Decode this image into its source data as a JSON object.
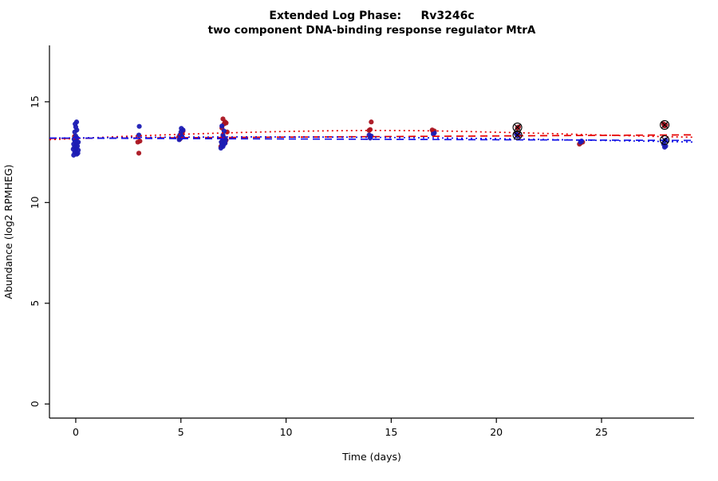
{
  "chart_data": {
    "type": "scatter",
    "title": "Extended Log Phase:     Rv3246c",
    "subtitle": "two component DNA-binding response regulator MtrA",
    "xlabel": "Time  (days)",
    "ylabel": "Abundance  (log2 RPMHEG)",
    "xlim": [
      -1.25,
      29.4
    ],
    "ylim": [
      -0.7,
      17.8
    ],
    "xticks": [
      0,
      5,
      10,
      15,
      20,
      25
    ],
    "yticks": [
      0,
      5,
      10,
      15
    ],
    "grid": false,
    "legend": "none",
    "colors": {
      "red_points": "#aa1420",
      "blue_points": "#1c1cb4",
      "red_line": "#e60000",
      "blue_line": "#1414e6",
      "axis": "#000000",
      "marker_outline": "#000000"
    },
    "series": [
      {
        "name": "red-condition",
        "color": "#aa1420",
        "points": [
          [
            0.02,
            12.48
          ],
          [
            -0.06,
            13.28
          ],
          [
            3.0,
            12.45
          ],
          [
            2.95,
            13.0
          ],
          [
            3.05,
            13.05
          ],
          [
            4.95,
            13.15
          ],
          [
            4.9,
            13.25
          ],
          [
            5.0,
            13.3
          ],
          [
            5.05,
            13.45
          ],
          [
            5.1,
            13.55
          ],
          [
            6.9,
            12.78
          ],
          [
            7.0,
            12.85
          ],
          [
            7.1,
            12.95
          ],
          [
            6.95,
            13.0
          ],
          [
            7.05,
            13.05
          ],
          [
            7.15,
            13.1
          ],
          [
            7.0,
            13.3
          ],
          [
            7.2,
            13.5
          ],
          [
            6.95,
            13.7
          ],
          [
            7.05,
            13.9
          ],
          [
            7.15,
            13.95
          ],
          [
            7.1,
            14.0
          ],
          [
            7.0,
            14.15
          ],
          [
            13.95,
            13.58
          ],
          [
            14.0,
            13.62
          ],
          [
            14.05,
            14.0
          ],
          [
            17.0,
            13.5
          ],
          [
            17.05,
            13.55
          ],
          [
            16.95,
            13.6
          ],
          [
            21.0,
            13.7
          ],
          [
            21.05,
            13.75
          ],
          [
            23.95,
            12.9
          ],
          [
            24.0,
            12.95
          ],
          [
            24.1,
            13.0
          ],
          [
            28.0,
            13.8
          ],
          [
            28.05,
            13.85
          ],
          [
            27.95,
            13.9
          ]
        ]
      },
      {
        "name": "blue-condition",
        "color": "#1c1cb4",
        "points": [
          [
            -0.1,
            12.35
          ],
          [
            0.05,
            12.4
          ],
          [
            0.1,
            12.45
          ],
          [
            -0.05,
            12.5
          ],
          [
            0.0,
            12.55
          ],
          [
            0.12,
            12.6
          ],
          [
            -0.12,
            12.65
          ],
          [
            0.03,
            12.7
          ],
          [
            -0.06,
            12.75
          ],
          [
            0.08,
            12.8
          ],
          [
            0.0,
            12.85
          ],
          [
            -0.1,
            12.9
          ],
          [
            0.05,
            12.95
          ],
          [
            0.12,
            13.0
          ],
          [
            -0.04,
            13.05
          ],
          [
            0.02,
            13.1
          ],
          [
            -0.08,
            13.15
          ],
          [
            0.06,
            13.2
          ],
          [
            0.0,
            13.3
          ],
          [
            -0.05,
            13.5
          ],
          [
            0.05,
            13.6
          ],
          [
            0.0,
            13.75
          ],
          [
            -0.03,
            13.9
          ],
          [
            0.04,
            14.0
          ],
          [
            3.0,
            13.35
          ],
          [
            3.02,
            13.78
          ],
          [
            4.92,
            13.12
          ],
          [
            5.0,
            13.2
          ],
          [
            5.05,
            13.3
          ],
          [
            4.95,
            13.35
          ],
          [
            5.0,
            13.5
          ],
          [
            5.1,
            13.6
          ],
          [
            5.02,
            13.68
          ],
          [
            6.9,
            12.7
          ],
          [
            7.0,
            12.78
          ],
          [
            6.95,
            12.85
          ],
          [
            7.05,
            12.9
          ],
          [
            7.1,
            12.95
          ],
          [
            6.92,
            13.0
          ],
          [
            7.02,
            13.05
          ],
          [
            7.12,
            13.1
          ],
          [
            6.98,
            13.15
          ],
          [
            7.08,
            13.2
          ],
          [
            7.0,
            13.35
          ],
          [
            7.05,
            13.55
          ],
          [
            6.95,
            13.8
          ],
          [
            14.0,
            13.2
          ],
          [
            14.05,
            13.3
          ],
          [
            13.95,
            13.35
          ],
          [
            17.0,
            13.4
          ],
          [
            17.05,
            13.45
          ],
          [
            21.0,
            13.3
          ],
          [
            21.05,
            13.35
          ],
          [
            20.95,
            13.4
          ],
          [
            24.0,
            13.0
          ],
          [
            24.05,
            13.05
          ],
          [
            28.0,
            12.75
          ],
          [
            28.05,
            12.8
          ],
          [
            27.95,
            12.9
          ],
          [
            28.0,
            13.05
          ],
          [
            28.05,
            13.1
          ]
        ]
      }
    ],
    "circled_points": [
      [
        21,
        13.73
      ],
      [
        21,
        13.35
      ],
      [
        28,
        13.85
      ],
      [
        28,
        13.1
      ]
    ],
    "trend_lines": [
      {
        "name": "red-dashed-fit",
        "color": "#e60000",
        "style": "dashed",
        "points": [
          [
            -1.25,
            13.18
          ],
          [
            29.4,
            13.36
          ]
        ]
      },
      {
        "name": "blue-dashed-fit",
        "color": "#1414e6",
        "style": "dashed",
        "points": [
          [
            -1.25,
            13.2
          ],
          [
            29.4,
            13.08
          ]
        ]
      },
      {
        "name": "red-dotted-fit",
        "color": "#e60000",
        "style": "dotted",
        "points": [
          [
            -1.25,
            13.12
          ],
          [
            0,
            13.18
          ],
          [
            2,
            13.27
          ],
          [
            4,
            13.35
          ],
          [
            6,
            13.42
          ],
          [
            8,
            13.48
          ],
          [
            10,
            13.53
          ],
          [
            12,
            13.56
          ],
          [
            14,
            13.58
          ],
          [
            16,
            13.57
          ],
          [
            18,
            13.54
          ],
          [
            20,
            13.49
          ],
          [
            22,
            13.44
          ],
          [
            24,
            13.38
          ],
          [
            26,
            13.32
          ],
          [
            28,
            13.27
          ],
          [
            29.4,
            13.24
          ]
        ]
      },
      {
        "name": "blue-dotted-fit",
        "color": "#1414e6",
        "style": "dotted",
        "points": [
          [
            -1.25,
            13.2
          ],
          [
            0,
            13.21
          ],
          [
            4,
            13.24
          ],
          [
            8,
            13.26
          ],
          [
            12,
            13.25
          ],
          [
            16,
            13.22
          ],
          [
            20,
            13.17
          ],
          [
            24,
            13.1
          ],
          [
            28,
            13.03
          ],
          [
            29.4,
            13.0
          ]
        ]
      }
    ]
  }
}
